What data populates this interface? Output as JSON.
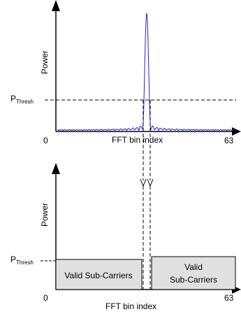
{
  "top_plot": {
    "y_label": "Power",
    "threshold_label": "P",
    "threshold_subscript": "Thresh",
    "x_label": "FFT bin index",
    "x_min_label": "0",
    "x_max_label": "63"
  },
  "bottom_plot": {
    "y_label": "Power",
    "threshold_label": "P",
    "threshold_subscript": "Thresh",
    "x_label": "FFT bin index",
    "x_min_label": "0",
    "x_max_label": "63",
    "left_block_label": "Valid Sub-Carriers",
    "right_block_label_line1": "Valid",
    "right_block_label_line2": "Sub-Carriers"
  },
  "colors": {
    "spectrum": "#2222dd",
    "block_fill": "#e0e0e0",
    "axis": "#000000"
  }
}
